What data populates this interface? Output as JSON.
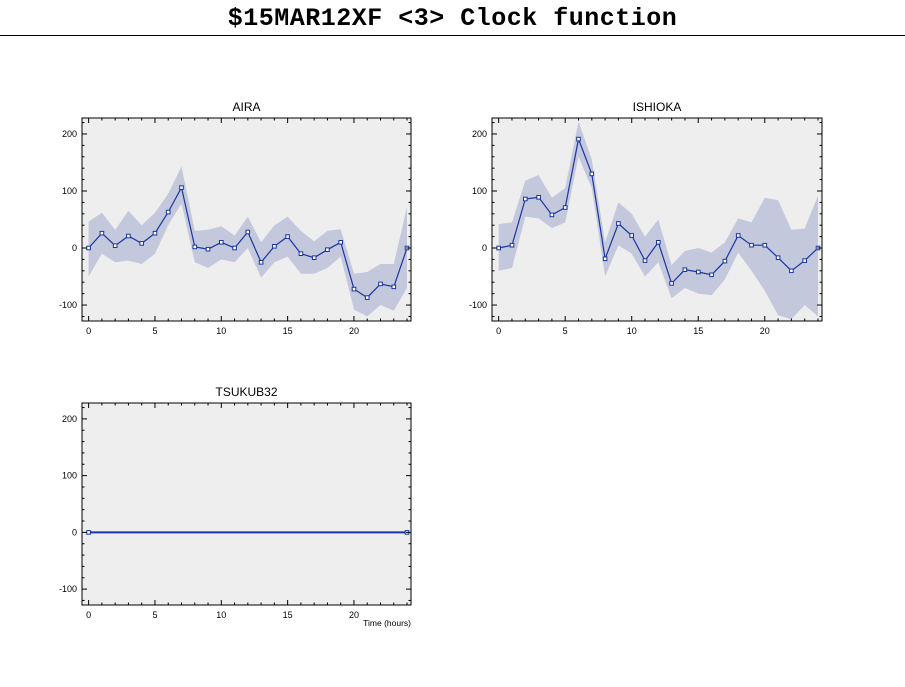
{
  "header": {
    "title": "$15MAR12XF <3>  Clock function"
  },
  "colors": {
    "line": "#1a35a0",
    "band": "#c3c8dc",
    "panel_bg": "#eeeeee",
    "frame": "#000000"
  },
  "chart_data": [
    {
      "type": "line",
      "title": "AIRA",
      "xlabel": "",
      "ylabel": "",
      "xlim": [
        -0.5,
        24.3
      ],
      "ylim": [
        -128,
        228
      ],
      "xticks": [
        0,
        5,
        10,
        15,
        20
      ],
      "yticks": [
        -100,
        0,
        100,
        200
      ],
      "grid": false,
      "x": [
        0,
        1,
        2,
        3,
        4,
        5,
        6,
        7,
        8,
        9,
        10,
        11,
        12,
        13,
        14,
        15,
        16,
        17,
        18,
        19,
        20,
        21,
        22,
        23,
        24
      ],
      "values": [
        0,
        26,
        4,
        21,
        8,
        26,
        63,
        106,
        2,
        -2,
        10,
        0,
        28,
        -25,
        3,
        20,
        -10,
        -17,
        -3,
        10,
        -72,
        -87,
        -63,
        -68,
        0
      ],
      "band_upper": [
        46,
        62,
        32,
        65,
        40,
        62,
        95,
        143,
        30,
        32,
        38,
        22,
        55,
        10,
        40,
        55,
        30,
        12,
        30,
        33,
        -45,
        -42,
        -28,
        -28,
        72
      ],
      "band_lower": [
        -50,
        -10,
        -25,
        -22,
        -28,
        -10,
        40,
        78,
        -25,
        -35,
        -20,
        -25,
        0,
        -52,
        -25,
        -15,
        -45,
        -45,
        -35,
        -15,
        -108,
        -120,
        -100,
        -110,
        -70
      ]
    },
    {
      "type": "line",
      "title": "ISHIOKA",
      "xlabel": "",
      "ylabel": "",
      "xlim": [
        -0.5,
        24.3
      ],
      "ylim": [
        -128,
        228
      ],
      "xticks": [
        0,
        5,
        10,
        15,
        20
      ],
      "yticks": [
        -100,
        0,
        100,
        200
      ],
      "grid": false,
      "x": [
        0,
        1,
        2,
        3,
        4,
        5,
        6,
        7,
        8,
        9,
        10,
        11,
        12,
        13,
        14,
        15,
        16,
        17,
        18,
        19,
        20,
        21,
        22,
        23,
        24
      ],
      "values": [
        0,
        5,
        86,
        89,
        58,
        71,
        191,
        130,
        -19,
        43,
        22,
        -22,
        10,
        -62,
        -38,
        -42,
        -47,
        -23,
        22,
        5,
        5,
        -17,
        -40,
        -22,
        0
      ],
      "band_upper": [
        42,
        45,
        118,
        128,
        88,
        105,
        222,
        155,
        10,
        80,
        60,
        20,
        50,
        -30,
        -5,
        0,
        -8,
        10,
        52,
        45,
        88,
        84,
        32,
        34,
        92
      ],
      "band_lower": [
        -40,
        -35,
        55,
        52,
        35,
        45,
        160,
        105,
        -50,
        5,
        -10,
        -50,
        -25,
        -88,
        -70,
        -80,
        -83,
        -55,
        -8,
        -40,
        -75,
        -118,
        -125,
        -100,
        -120
      ]
    },
    {
      "type": "line",
      "title": "TSUKUB32",
      "xlabel": "Time (hours)",
      "ylabel": "",
      "xlim": [
        -0.5,
        24.3
      ],
      "ylim": [
        -128,
        228
      ],
      "xticks": [
        0,
        5,
        10,
        15,
        20
      ],
      "yticks": [
        -100,
        0,
        100,
        200
      ],
      "grid": false,
      "x": [
        0,
        24
      ],
      "values": [
        0,
        0
      ],
      "band_upper": [
        0,
        0
      ],
      "band_lower": [
        0,
        0
      ]
    }
  ]
}
